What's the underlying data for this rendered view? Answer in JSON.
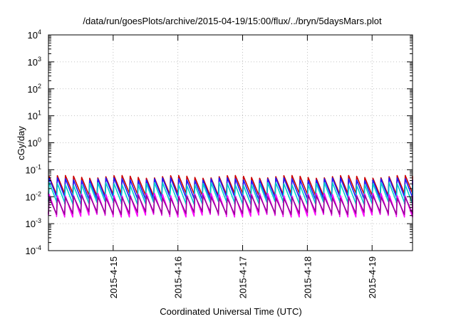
{
  "chart_data": {
    "type": "line",
    "title": "/data/run/goesPlots/archive/2015-04-19/15:00/flux/../bryn/5daysMars.plot",
    "xlabel": "Coordinated Universal Time (UTC)",
    "ylabel": "cGy/day",
    "y_scale": "log",
    "ylim": [
      0.0001,
      10000
    ],
    "xlim": [
      "2015-04-14 00:00",
      "2015-04-19 15:00"
    ],
    "x_tick_labels": [
      "2015-4-15",
      "2015-4-16",
      "2015-4-17",
      "2015-4-18",
      "2015-4-19"
    ],
    "y_tick_labels": [
      {
        "base": "10",
        "exp": "-4"
      },
      {
        "base": "10",
        "exp": "-3"
      },
      {
        "base": "10",
        "exp": "-2"
      },
      {
        "base": "10",
        "exp": "-1"
      },
      {
        "base": "10",
        "exp": "0"
      },
      {
        "base": "10",
        "exp": "1"
      },
      {
        "base": "10",
        "exp": "2"
      },
      {
        "base": "10",
        "exp": "3"
      },
      {
        "base": "10",
        "exp": "4"
      }
    ],
    "grid": true,
    "sawtooth_period_hours": 3,
    "series": [
      {
        "color": "#cc0000",
        "peak": 0.055,
        "trough": 0.012
      },
      {
        "color": "#1a1aff",
        "peak": 0.045,
        "trough": 0.009
      },
      {
        "color": "#00cccc",
        "peak": 0.03,
        "trough": 0.006
      },
      {
        "color": "#ff00ff",
        "peak": 0.012,
        "trough": 0.002
      },
      {
        "color": "#990099",
        "peak": 0.01,
        "trough": 0.0025
      }
    ]
  }
}
